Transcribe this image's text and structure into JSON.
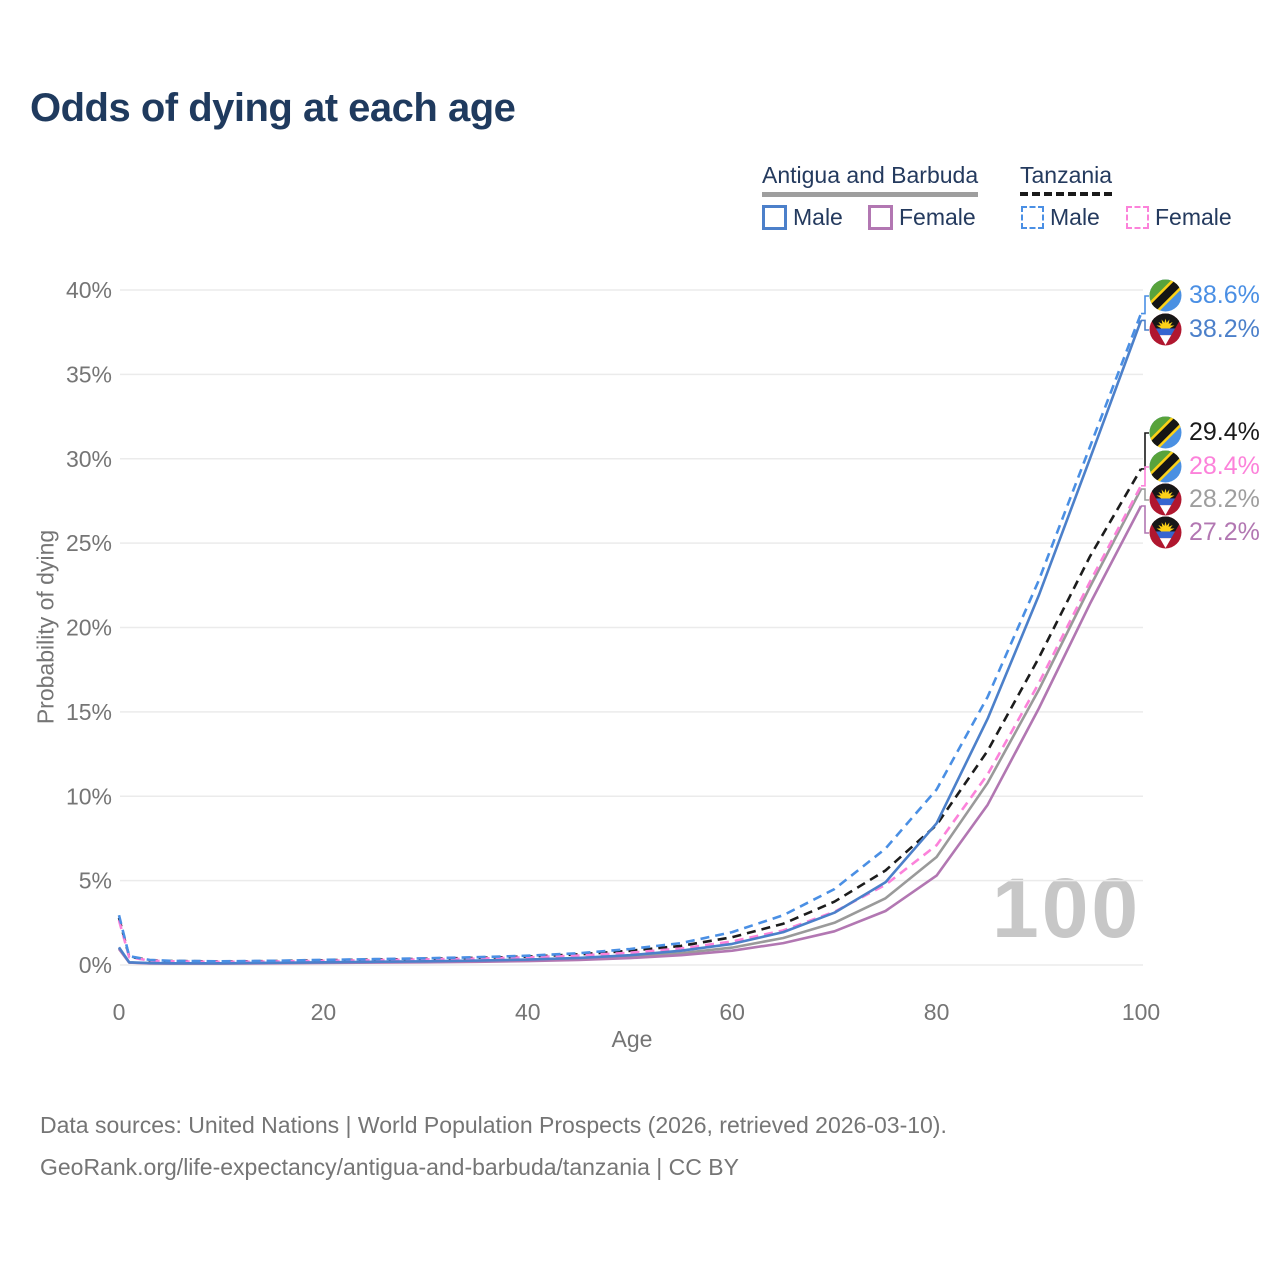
{
  "title": "Odds of dying at each age",
  "watermark": "100",
  "legend": {
    "groups": [
      {
        "label": "Antigua and Barbuda",
        "line_style": "solid",
        "underline_color": "#9e9e9e",
        "items": [
          {
            "label": "Male",
            "color": "#4c80ca"
          },
          {
            "label": "Female",
            "color": "#b277b2"
          }
        ]
      },
      {
        "label": "Tanzania",
        "line_style": "dashed",
        "underline_color": "#1a1a1a",
        "items": [
          {
            "label": "Male",
            "color": "#4a8fe4"
          },
          {
            "label": "Female",
            "color": "#fc82da"
          }
        ]
      }
    ]
  },
  "footer": {
    "line1": "Data sources: United Nations | World Population Prospects (2026, retrieved 2026-03-10).",
    "line2": "GeoRank.org/life-expectancy/antigua-and-barbuda/tanzania | CC BY"
  },
  "chart_data": {
    "type": "line",
    "title": "Odds of dying at each age",
    "xlabel": "Age",
    "ylabel": "Probability of dying",
    "xlim": [
      0,
      100
    ],
    "ylim": [
      0,
      40
    ],
    "x_ticks": [
      0,
      20,
      40,
      60,
      80,
      100
    ],
    "y_ticks": [
      "0%",
      "5%",
      "10%",
      "15%",
      "20%",
      "25%",
      "30%",
      "35%",
      "40%"
    ],
    "grid": "horizontal-only",
    "legend_position": "top-right",
    "series": [
      {
        "name": "Antigua and Barbuda — Combined",
        "country": "Antigua and Barbuda",
        "sex": "combined",
        "color": "#9a9a9a",
        "dash": false,
        "points": [
          [
            0,
            1.0
          ],
          [
            1,
            0.15
          ],
          [
            3,
            0.1
          ],
          [
            5,
            0.09
          ],
          [
            10,
            0.09
          ],
          [
            15,
            0.11
          ],
          [
            20,
            0.14
          ],
          [
            25,
            0.16
          ],
          [
            30,
            0.19
          ],
          [
            35,
            0.23
          ],
          [
            40,
            0.28
          ],
          [
            45,
            0.36
          ],
          [
            50,
            0.5
          ],
          [
            55,
            0.7
          ],
          [
            60,
            1.03
          ],
          [
            65,
            1.6
          ],
          [
            70,
            2.5
          ],
          [
            75,
            3.95
          ],
          [
            80,
            6.4
          ],
          [
            85,
            10.8
          ],
          [
            90,
            16.3
          ],
          [
            95,
            22.4
          ],
          [
            100,
            28.2
          ]
        ]
      },
      {
        "name": "Antigua and Barbuda — Female",
        "country": "Antigua and Barbuda",
        "sex": "female",
        "color": "#b277b2",
        "dash": false,
        "points": [
          [
            0,
            0.95
          ],
          [
            1,
            0.14
          ],
          [
            3,
            0.09
          ],
          [
            5,
            0.08
          ],
          [
            10,
            0.08
          ],
          [
            15,
            0.1
          ],
          [
            20,
            0.12
          ],
          [
            25,
            0.14
          ],
          [
            30,
            0.16
          ],
          [
            35,
            0.19
          ],
          [
            40,
            0.23
          ],
          [
            45,
            0.3
          ],
          [
            50,
            0.41
          ],
          [
            55,
            0.58
          ],
          [
            60,
            0.85
          ],
          [
            65,
            1.3
          ],
          [
            70,
            2.0
          ],
          [
            75,
            3.2
          ],
          [
            80,
            5.3
          ],
          [
            85,
            9.5
          ],
          [
            90,
            15.2
          ],
          [
            95,
            21.4
          ],
          [
            100,
            27.2
          ]
        ]
      },
      {
        "name": "Tanzania — Combined",
        "country": "Tanzania",
        "sex": "combined",
        "color": "#1c1c1c",
        "dash": true,
        "points": [
          [
            0,
            2.8
          ],
          [
            1,
            0.49
          ],
          [
            3,
            0.28
          ],
          [
            5,
            0.24
          ],
          [
            10,
            0.21
          ],
          [
            15,
            0.23
          ],
          [
            20,
            0.28
          ],
          [
            25,
            0.32
          ],
          [
            30,
            0.37
          ],
          [
            35,
            0.42
          ],
          [
            40,
            0.5
          ],
          [
            45,
            0.63
          ],
          [
            50,
            0.84
          ],
          [
            55,
            1.13
          ],
          [
            60,
            1.65
          ],
          [
            65,
            2.45
          ],
          [
            70,
            3.75
          ],
          [
            75,
            5.6
          ],
          [
            80,
            8.3
          ],
          [
            85,
            12.7
          ],
          [
            90,
            18.2
          ],
          [
            95,
            24.2
          ],
          [
            100,
            29.4
          ]
        ]
      },
      {
        "name": "Tanzania — Female",
        "country": "Tanzania",
        "sex": "female",
        "color": "#fc82da",
        "dash": true,
        "points": [
          [
            0,
            2.65
          ],
          [
            1,
            0.46
          ],
          [
            3,
            0.26
          ],
          [
            5,
            0.22
          ],
          [
            10,
            0.19
          ],
          [
            15,
            0.21
          ],
          [
            20,
            0.25
          ],
          [
            25,
            0.29
          ],
          [
            30,
            0.33
          ],
          [
            35,
            0.38
          ],
          [
            40,
            0.45
          ],
          [
            45,
            0.56
          ],
          [
            50,
            0.73
          ],
          [
            55,
            0.98
          ],
          [
            60,
            1.4
          ],
          [
            65,
            2.05
          ],
          [
            70,
            3.15
          ],
          [
            75,
            4.75
          ],
          [
            80,
            7.1
          ],
          [
            85,
            11.3
          ],
          [
            90,
            16.7
          ],
          [
            95,
            22.7
          ],
          [
            100,
            28.4
          ]
        ]
      },
      {
        "name": "Antigua and Barbuda — Male",
        "country": "Antigua and Barbuda",
        "sex": "male",
        "color": "#4c80ca",
        "dash": false,
        "points": [
          [
            0,
            1.05
          ],
          [
            1,
            0.16
          ],
          [
            3,
            0.11
          ],
          [
            5,
            0.1
          ],
          [
            10,
            0.1
          ],
          [
            15,
            0.13
          ],
          [
            20,
            0.16
          ],
          [
            25,
            0.19
          ],
          [
            30,
            0.22
          ],
          [
            35,
            0.26
          ],
          [
            40,
            0.32
          ],
          [
            45,
            0.42
          ],
          [
            50,
            0.58
          ],
          [
            55,
            0.85
          ],
          [
            60,
            1.25
          ],
          [
            65,
            1.95
          ],
          [
            70,
            3.1
          ],
          [
            75,
            4.9
          ],
          [
            80,
            8.4
          ],
          [
            85,
            14.6
          ],
          [
            90,
            21.9
          ],
          [
            95,
            30.0
          ],
          [
            100,
            38.2
          ]
        ]
      },
      {
        "name": "Tanzania — Male",
        "country": "Tanzania",
        "sex": "male",
        "color": "#4a8fe4",
        "dash": true,
        "points": [
          [
            0,
            2.95
          ],
          [
            1,
            0.52
          ],
          [
            3,
            0.3
          ],
          [
            5,
            0.25
          ],
          [
            10,
            0.22
          ],
          [
            15,
            0.25
          ],
          [
            20,
            0.3
          ],
          [
            25,
            0.35
          ],
          [
            30,
            0.4
          ],
          [
            35,
            0.46
          ],
          [
            40,
            0.55
          ],
          [
            45,
            0.7
          ],
          [
            50,
            0.95
          ],
          [
            55,
            1.3
          ],
          [
            60,
            1.95
          ],
          [
            65,
            2.95
          ],
          [
            70,
            4.5
          ],
          [
            75,
            6.9
          ],
          [
            80,
            10.4
          ],
          [
            85,
            15.9
          ],
          [
            90,
            22.8
          ],
          [
            95,
            30.7
          ],
          [
            100,
            38.6
          ]
        ]
      }
    ],
    "end_labels": [
      {
        "flag": "tanzania",
        "text": "38.6%",
        "value": 38.6,
        "color": "#4a8fe4"
      },
      {
        "flag": "antigua",
        "text": "38.2%",
        "value": 38.2,
        "color": "#4c80ca"
      },
      {
        "flag": "tanzania",
        "text": "29.4%",
        "value": 29.4,
        "color": "#1a1a1a"
      },
      {
        "flag": "tanzania",
        "text": "28.4%",
        "value": 28.4,
        "color": "#fc82da"
      },
      {
        "flag": "antigua",
        "text": "28.2%",
        "value": 28.2,
        "color": "#9e9e9e"
      },
      {
        "flag": "antigua",
        "text": "27.2%",
        "value": 27.2,
        "color": "#b277b2"
      }
    ]
  }
}
